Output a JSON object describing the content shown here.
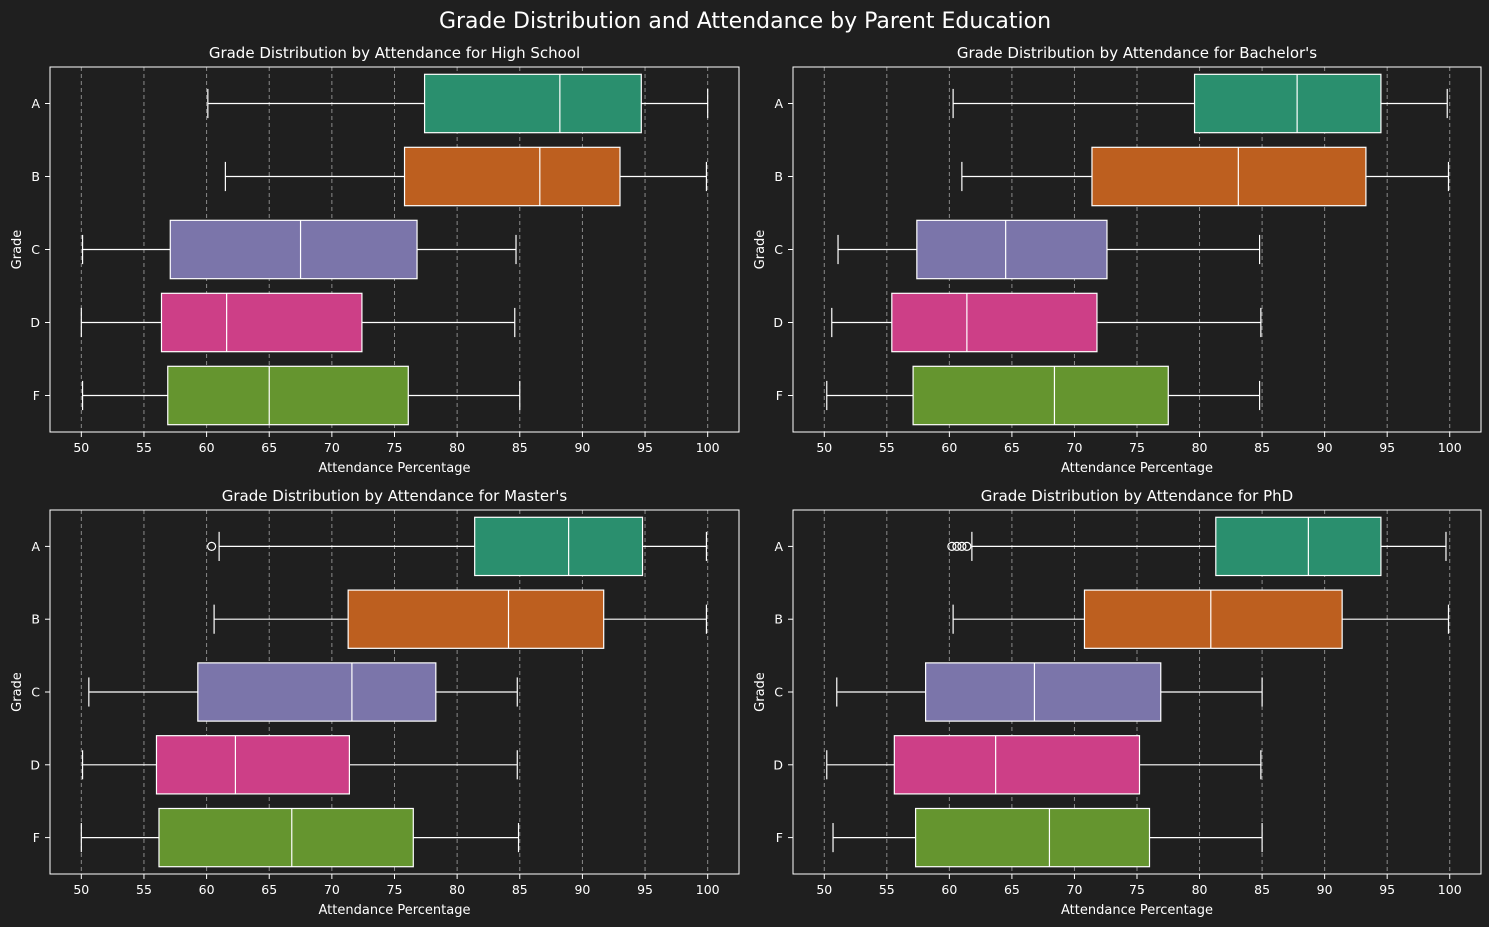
{
  "figure": {
    "title": "Grade Distribution and Attendance by Parent Education",
    "background": "#1f1f1f",
    "axes_edge_color": "#ffffff",
    "grid_color": "#8a8a8a",
    "box_edge_color": "#ffffff"
  },
  "palette": {
    "A": "#2a8f6e",
    "B": "#bd5f1f",
    "C": "#7b75aa",
    "D": "#cd3f87",
    "F": "#65952f"
  },
  "chart_data": [
    {
      "type": "box",
      "title": "Grade Distribution by Attendance for High School",
      "xlabel": "Attendance Percentage",
      "ylabel": "Grade",
      "xlim": [
        47.5,
        102.5
      ],
      "xticks": [
        50,
        55,
        60,
        65,
        70,
        75,
        80,
        85,
        90,
        95,
        100
      ],
      "grid": "vertical dashed",
      "categories": [
        "A",
        "B",
        "C",
        "D",
        "F"
      ],
      "boxes": [
        {
          "category": "A",
          "whisker_low": 60.1,
          "q1": 77.4,
          "median": 88.2,
          "q3": 94.7,
          "whisker_high": 100.0,
          "outliers": []
        },
        {
          "category": "B",
          "whisker_low": 61.5,
          "q1": 75.8,
          "median": 86.6,
          "q3": 93.0,
          "whisker_high": 99.9,
          "outliers": []
        },
        {
          "category": "C",
          "whisker_low": 50.1,
          "q1": 57.1,
          "median": 67.5,
          "q3": 76.8,
          "whisker_high": 84.7,
          "outliers": []
        },
        {
          "category": "D",
          "whisker_low": 50.0,
          "q1": 56.4,
          "median": 61.6,
          "q3": 72.4,
          "whisker_high": 84.6,
          "outliers": []
        },
        {
          "category": "F",
          "whisker_low": 50.1,
          "q1": 56.9,
          "median": 65.0,
          "q3": 76.1,
          "whisker_high": 85.0,
          "outliers": []
        }
      ]
    },
    {
      "type": "box",
      "title": "Grade Distribution by Attendance for Bachelor's",
      "xlabel": "Attendance Percentage",
      "ylabel": "Grade",
      "xlim": [
        47.5,
        102.5
      ],
      "xticks": [
        50,
        55,
        60,
        65,
        70,
        75,
        80,
        85,
        90,
        95,
        100
      ],
      "grid": "vertical dashed",
      "categories": [
        "A",
        "B",
        "C",
        "D",
        "F"
      ],
      "boxes": [
        {
          "category": "A",
          "whisker_low": 60.3,
          "q1": 79.6,
          "median": 87.8,
          "q3": 94.5,
          "whisker_high": 99.8,
          "outliers": []
        },
        {
          "category": "B",
          "whisker_low": 61.0,
          "q1": 71.4,
          "median": 83.1,
          "q3": 93.3,
          "whisker_high": 99.9,
          "outliers": []
        },
        {
          "category": "C",
          "whisker_low": 51.1,
          "q1": 57.4,
          "median": 64.5,
          "q3": 72.6,
          "whisker_high": 84.8,
          "outliers": []
        },
        {
          "category": "D",
          "whisker_low": 50.6,
          "q1": 55.4,
          "median": 61.4,
          "q3": 71.8,
          "whisker_high": 84.9,
          "outliers": []
        },
        {
          "category": "F",
          "whisker_low": 50.2,
          "q1": 57.1,
          "median": 68.4,
          "q3": 77.5,
          "whisker_high": 84.8,
          "outliers": []
        }
      ]
    },
    {
      "type": "box",
      "title": "Grade Distribution by Attendance for Master's",
      "xlabel": "Attendance Percentage",
      "ylabel": "Grade",
      "xlim": [
        47.5,
        102.5
      ],
      "xticks": [
        50,
        55,
        60,
        65,
        70,
        75,
        80,
        85,
        90,
        95,
        100
      ],
      "grid": "vertical dashed",
      "categories": [
        "A",
        "B",
        "C",
        "D",
        "F"
      ],
      "boxes": [
        {
          "category": "A",
          "whisker_low": 61.0,
          "q1": 81.4,
          "median": 88.9,
          "q3": 94.8,
          "whisker_high": 99.9,
          "outliers": [
            60.4
          ]
        },
        {
          "category": "B",
          "whisker_low": 60.6,
          "q1": 71.3,
          "median": 84.1,
          "q3": 91.7,
          "whisker_high": 99.9,
          "outliers": []
        },
        {
          "category": "C",
          "whisker_low": 50.6,
          "q1": 59.3,
          "median": 71.6,
          "q3": 78.3,
          "whisker_high": 84.8,
          "outliers": []
        },
        {
          "category": "D",
          "whisker_low": 50.1,
          "q1": 56.0,
          "median": 62.3,
          "q3": 71.4,
          "whisker_high": 84.8,
          "outliers": []
        },
        {
          "category": "F",
          "whisker_low": 50.0,
          "q1": 56.2,
          "median": 66.8,
          "q3": 76.5,
          "whisker_high": 84.9,
          "outliers": []
        }
      ]
    },
    {
      "type": "box",
      "title": "Grade Distribution by Attendance for PhD",
      "xlabel": "Attendance Percentage",
      "ylabel": "Grade",
      "xlim": [
        47.5,
        102.5
      ],
      "xticks": [
        50,
        55,
        60,
        65,
        70,
        75,
        80,
        85,
        90,
        95,
        100
      ],
      "grid": "vertical dashed",
      "categories": [
        "A",
        "B",
        "C",
        "D",
        "F"
      ],
      "boxes": [
        {
          "category": "A",
          "whisker_low": 61.8,
          "q1": 81.3,
          "median": 88.7,
          "q3": 94.5,
          "whisker_high": 99.7,
          "outliers": [
            60.2,
            60.6,
            61.0,
            61.4
          ]
        },
        {
          "category": "B",
          "whisker_low": 60.3,
          "q1": 70.8,
          "median": 80.9,
          "q3": 91.4,
          "whisker_high": 99.9,
          "outliers": []
        },
        {
          "category": "C",
          "whisker_low": 51.0,
          "q1": 58.1,
          "median": 66.8,
          "q3": 76.9,
          "whisker_high": 85.0,
          "outliers": []
        },
        {
          "category": "D",
          "whisker_low": 50.2,
          "q1": 55.6,
          "median": 63.7,
          "q3": 75.2,
          "whisker_high": 84.9,
          "outliers": []
        },
        {
          "category": "F",
          "whisker_low": 50.7,
          "q1": 57.3,
          "median": 68.0,
          "q3": 76.0,
          "whisker_high": 85.0,
          "outliers": []
        }
      ]
    }
  ]
}
